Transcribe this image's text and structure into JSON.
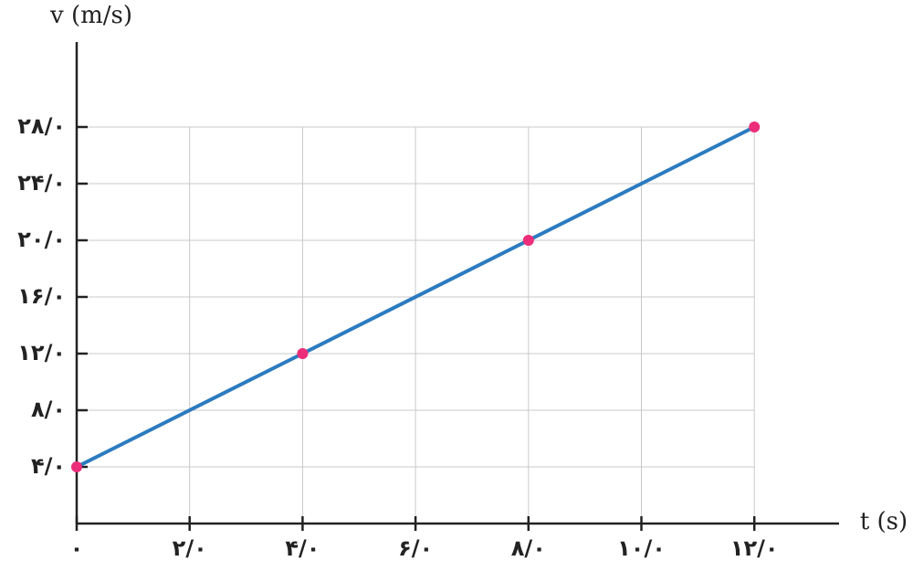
{
  "chart_data": {
    "type": "line",
    "x_label": "t (s)",
    "y_label": "v (m/s)",
    "x": [
      0,
      4,
      8,
      12
    ],
    "series": [
      {
        "color": "#2b7bc0",
        "marker_color": "#ec2d7a",
        "values": [
          4,
          12,
          20,
          28
        ]
      }
    ],
    "xlim": [
      0,
      13.5
    ],
    "ylim": [
      0,
      34
    ],
    "xticks": [
      {
        "value": 0,
        "label": "۰"
      },
      {
        "value": 2,
        "label": "۲/۰"
      },
      {
        "value": 4,
        "label": "۴/۰"
      },
      {
        "value": 6,
        "label": "۶/۰"
      },
      {
        "value": 8,
        "label": "۸/۰"
      },
      {
        "value": 10,
        "label": "۱۰/۰"
      },
      {
        "value": 12,
        "label": "۱۲/۰"
      }
    ],
    "yticks": [
      {
        "value": 4,
        "label": "۴/۰"
      },
      {
        "value": 8,
        "label": "۸/۰"
      },
      {
        "value": 12,
        "label": "۱۲/۰"
      },
      {
        "value": 16,
        "label": "۱۶/۰"
      },
      {
        "value": 20,
        "label": "۲۰/۰"
      },
      {
        "value": 24,
        "label": "۲۴/۰"
      },
      {
        "value": 28,
        "label": "۲۸/۰"
      }
    ],
    "grid": true
  }
}
